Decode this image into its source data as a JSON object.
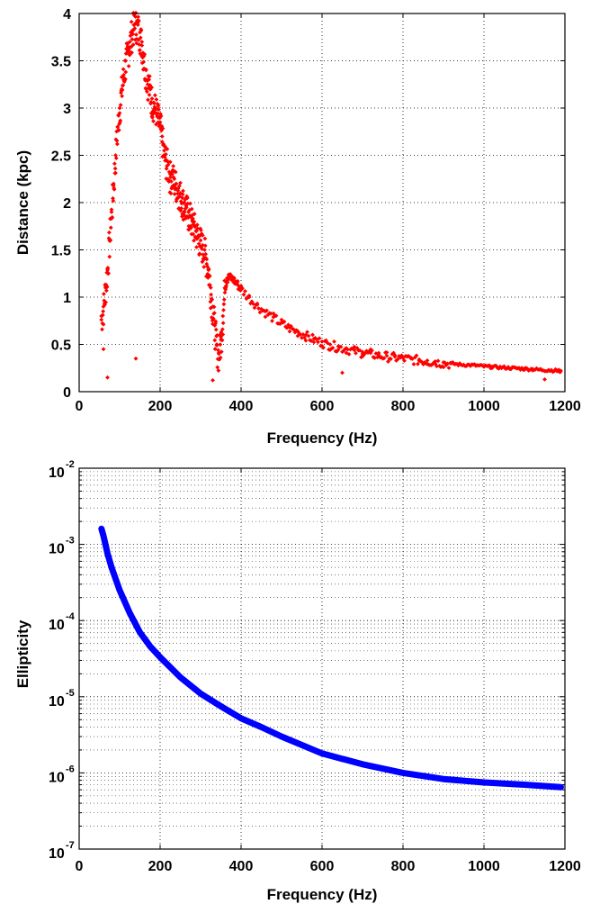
{
  "chart_data": [
    {
      "type": "scatter",
      "title": "",
      "xlabel": "Frequency (Hz)",
      "ylabel": "Distance (kpc)",
      "xlim": [
        0,
        1200
      ],
      "ylim": [
        0,
        4
      ],
      "xticks": [
        "0",
        "200",
        "400",
        "600",
        "800",
        "1000",
        "1200"
      ],
      "yticks": [
        "0",
        "0.5",
        "1",
        "1.5",
        "2",
        "2.5",
        "3",
        "3.5",
        "4"
      ],
      "grid": true,
      "marker_color": "#ff0000",
      "series": [
        {
          "points": [
            [
              55,
              0.8
            ],
            [
              60,
              0.9
            ],
            [
              65,
              1.1
            ],
            [
              70,
              1.3
            ],
            [
              75,
              1.6
            ],
            [
              80,
              1.9
            ],
            [
              85,
              2.2
            ],
            [
              90,
              2.5
            ],
            [
              95,
              2.8
            ],
            [
              100,
              3.0
            ],
            [
              105,
              3.2
            ],
            [
              110,
              3.35
            ],
            [
              115,
              3.5
            ],
            [
              120,
              3.6
            ],
            [
              125,
              3.7
            ],
            [
              130,
              3.8
            ],
            [
              135,
              3.88
            ],
            [
              140,
              3.9
            ],
            [
              145,
              3.88
            ],
            [
              150,
              3.8
            ],
            [
              155,
              3.7
            ],
            [
              160,
              3.55
            ],
            [
              165,
              3.4
            ],
            [
              170,
              3.3
            ],
            [
              175,
              3.2
            ],
            [
              180,
              3.1
            ],
            [
              185,
              3.05
            ],
            [
              190,
              3.0
            ],
            [
              195,
              2.9
            ],
            [
              200,
              2.85
            ],
            [
              205,
              2.7
            ],
            [
              210,
              2.55
            ],
            [
              215,
              2.45
            ],
            [
              220,
              2.4
            ],
            [
              225,
              2.3
            ],
            [
              230,
              2.3
            ],
            [
              235,
              2.25
            ],
            [
              240,
              2.2
            ],
            [
              245,
              2.15
            ],
            [
              250,
              2.1
            ],
            [
              255,
              2.05
            ],
            [
              260,
              2.0
            ],
            [
              265,
              1.95
            ],
            [
              270,
              1.9
            ],
            [
              275,
              1.85
            ],
            [
              280,
              1.8
            ],
            [
              285,
              1.75
            ],
            [
              290,
              1.7
            ],
            [
              295,
              1.65
            ],
            [
              300,
              1.6
            ],
            [
              305,
              1.55
            ],
            [
              310,
              1.5
            ],
            [
              315,
              1.4
            ],
            [
              320,
              1.3
            ],
            [
              325,
              1.1
            ],
            [
              330,
              0.9
            ],
            [
              335,
              0.7
            ],
            [
              340,
              0.5
            ],
            [
              345,
              0.4
            ],
            [
              350,
              0.55
            ],
            [
              355,
              0.8
            ],
            [
              360,
              1.1
            ],
            [
              365,
              1.2
            ],
            [
              370,
              1.22
            ],
            [
              380,
              1.2
            ],
            [
              390,
              1.15
            ],
            [
              400,
              1.1
            ],
            [
              420,
              1.0
            ],
            [
              440,
              0.92
            ],
            [
              460,
              0.85
            ],
            [
              480,
              0.79
            ],
            [
              500,
              0.73
            ],
            [
              520,
              0.68
            ],
            [
              540,
              0.64
            ],
            [
              560,
              0.6
            ],
            [
              580,
              0.56
            ],
            [
              600,
              0.53
            ],
            [
              620,
              0.5
            ],
            [
              640,
              0.48
            ],
            [
              660,
              0.46
            ],
            [
              680,
              0.44
            ],
            [
              700,
              0.42
            ],
            [
              720,
              0.41
            ],
            [
              740,
              0.39
            ],
            [
              760,
              0.38
            ],
            [
              780,
              0.37
            ],
            [
              800,
              0.36
            ],
            [
              820,
              0.35
            ],
            [
              840,
              0.34
            ],
            [
              860,
              0.33
            ],
            [
              880,
              0.32
            ],
            [
              900,
              0.31
            ],
            [
              920,
              0.3
            ],
            [
              940,
              0.29
            ],
            [
              960,
              0.285
            ],
            [
              980,
              0.28
            ],
            [
              1000,
              0.27
            ],
            [
              1020,
              0.265
            ],
            [
              1040,
              0.26
            ],
            [
              1060,
              0.255
            ],
            [
              1080,
              0.25
            ],
            [
              1100,
              0.245
            ],
            [
              1120,
              0.24
            ],
            [
              1140,
              0.235
            ],
            [
              1160,
              0.23
            ],
            [
              1180,
              0.225
            ],
            [
              1190,
              0.22
            ]
          ]
        }
      ],
      "outliers": [
        [
          60,
          0.45
        ],
        [
          70,
          0.15
        ],
        [
          140,
          0.35
        ],
        [
          330,
          0.12
        ],
        [
          650,
          0.2
        ],
        [
          700,
          0.4
        ],
        [
          1150,
          0.13
        ]
      ]
    },
    {
      "type": "line",
      "title": "",
      "xlabel": "Frequency (Hz)",
      "ylabel": "Ellipticity",
      "xlim": [
        0,
        1200
      ],
      "ylim": [
        1e-07,
        0.01
      ],
      "yscale": "log",
      "xticks": [
        "0",
        "200",
        "400",
        "600",
        "800",
        "1000",
        "1200"
      ],
      "yticks": [
        {
          "base": "10",
          "exp": "-7"
        },
        {
          "base": "10",
          "exp": "-6"
        },
        {
          "base": "10",
          "exp": "-5"
        },
        {
          "base": "10",
          "exp": "-4"
        },
        {
          "base": "10",
          "exp": "-3"
        },
        {
          "base": "10",
          "exp": "-2"
        }
      ],
      "grid": true,
      "line_color": "#0000ff",
      "series": [
        {
          "x": [
            55,
            60,
            70,
            80,
            100,
            125,
            150,
            175,
            200,
            250,
            300,
            350,
            400,
            450,
            500,
            600,
            700,
            800,
            900,
            1000,
            1100,
            1190
          ],
          "y": [
            0.0016,
            0.0013,
            0.00076,
            0.0005,
            0.00025,
            0.000125,
            7e-05,
            4.6e-05,
            3.3e-05,
            1.8e-05,
            1.1e-05,
            7.5e-06,
            5.2e-06,
            4e-06,
            3e-06,
            1.8e-06,
            1.3e-06,
            1e-06,
            8.3e-07,
            7.5e-07,
            7e-07,
            6.5e-07
          ]
        }
      ]
    }
  ]
}
